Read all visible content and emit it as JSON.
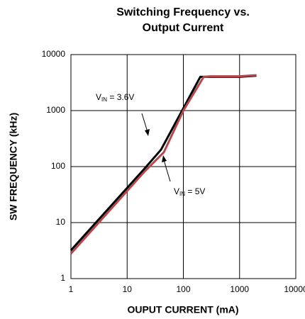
{
  "chart_data": {
    "type": "line",
    "title": [
      "Switching Frequency vs.",
      "Output Current"
    ],
    "xlabel": "OUPUT CURRENT (mA)",
    "ylabel": "SW FREQUENCY (kHz)",
    "xscale": "log",
    "yscale": "log",
    "xlim": [
      1,
      10000
    ],
    "ylim": [
      1,
      10000
    ],
    "xticks": [
      1,
      10,
      100,
      1000,
      10000
    ],
    "yticks": [
      1,
      10,
      100,
      1000,
      10000
    ],
    "grid": true,
    "series": [
      {
        "name": "VIN = 3.6V",
        "color": "#000000",
        "x": [
          1,
          20,
          40,
          100,
          200,
          300,
          1000,
          2000
        ],
        "values": [
          3.2,
          90,
          200,
          1100,
          4000,
          4000,
          4000,
          4200
        ]
      },
      {
        "name": "VIN = 5V",
        "color": "#b5474a",
        "x": [
          1,
          20,
          45,
          100,
          230,
          300,
          1000,
          2000
        ],
        "values": [
          2.8,
          80,
          180,
          1000,
          4000,
          4100,
          4100,
          4300
        ]
      }
    ],
    "annotations": [
      {
        "base": "V",
        "sub": "IN",
        "text": " = 3.6V"
      },
      {
        "base": "V",
        "sub": "IN",
        "text": " = 5V"
      }
    ]
  }
}
